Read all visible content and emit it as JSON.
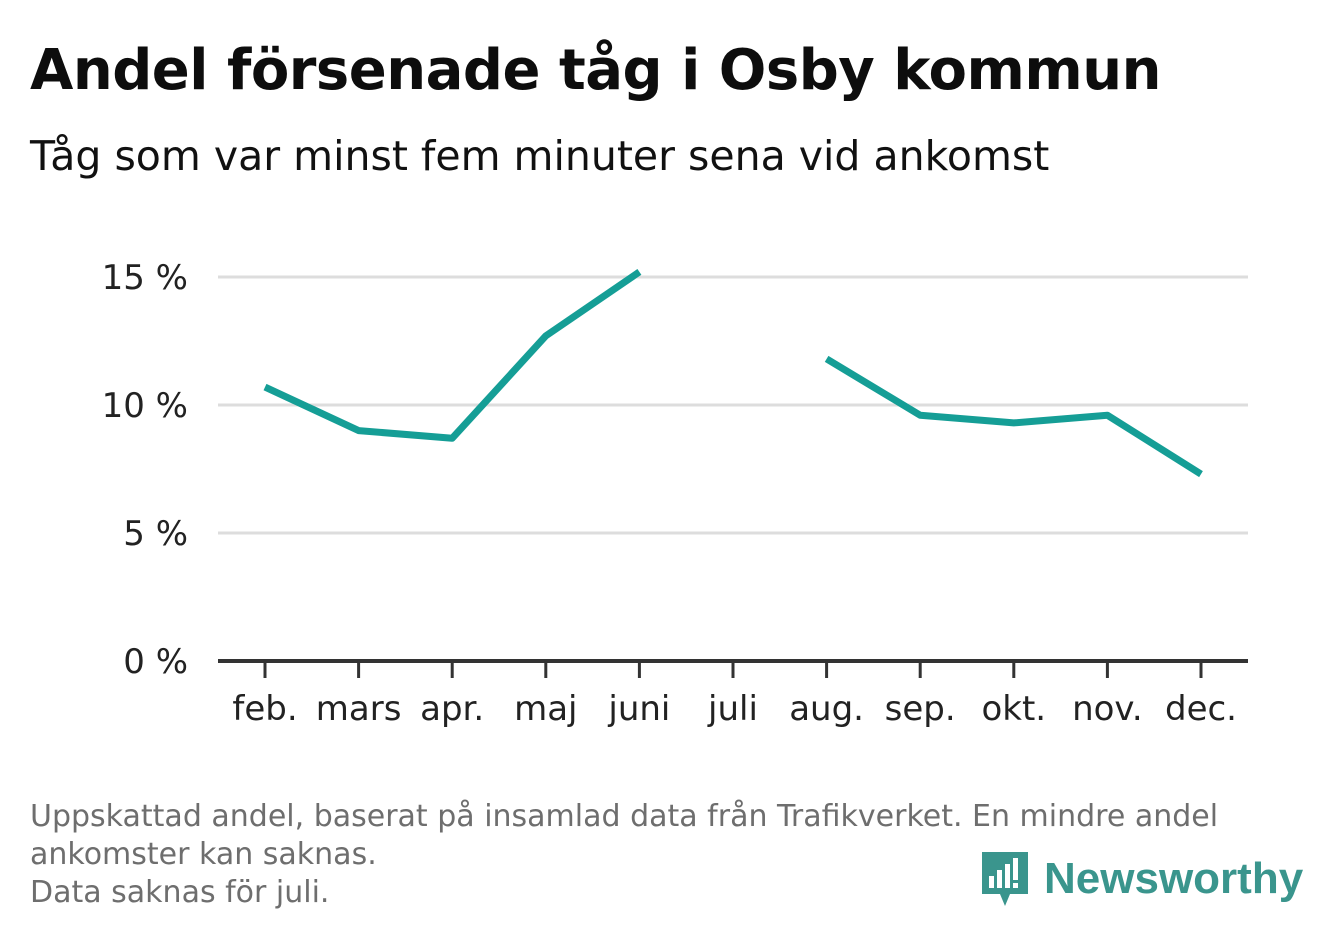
{
  "title": "Andel försenade tåg i Osby kommun",
  "subtitle": "Tåg som var minst fem minuter sena vid ankomst",
  "footer": {
    "line1": "Uppskattad andel, baserat på insamlad data från Trafikverket. En mindre andel",
    "line2": "ankomster kan saknas.",
    "line3": "Data saknas för juli."
  },
  "logo": {
    "text": "Newsworthy",
    "icon": "newsworthy-bar-chart-icon"
  },
  "colors": {
    "line": "#159e96",
    "grid": "#dddddd",
    "axis": "#333333",
    "brand": "#3a958d"
  },
  "chart_data": {
    "type": "line",
    "categories": [
      "feb.",
      "mars",
      "apr.",
      "maj",
      "juni",
      "juli",
      "aug.",
      "sep.",
      "okt.",
      "nov.",
      "dec."
    ],
    "series": [
      {
        "values": [
          10.7,
          9.0,
          8.7,
          12.7,
          15.2,
          null,
          11.8,
          9.6,
          9.3,
          9.6,
          7.3
        ]
      }
    ],
    "ylim": [
      0,
      15
    ],
    "yticks": [
      0,
      5,
      10,
      15
    ],
    "ytick_labels": [
      "0 %",
      "5 %",
      "10 %",
      "15 %"
    ],
    "grid": true,
    "legend": "none"
  }
}
